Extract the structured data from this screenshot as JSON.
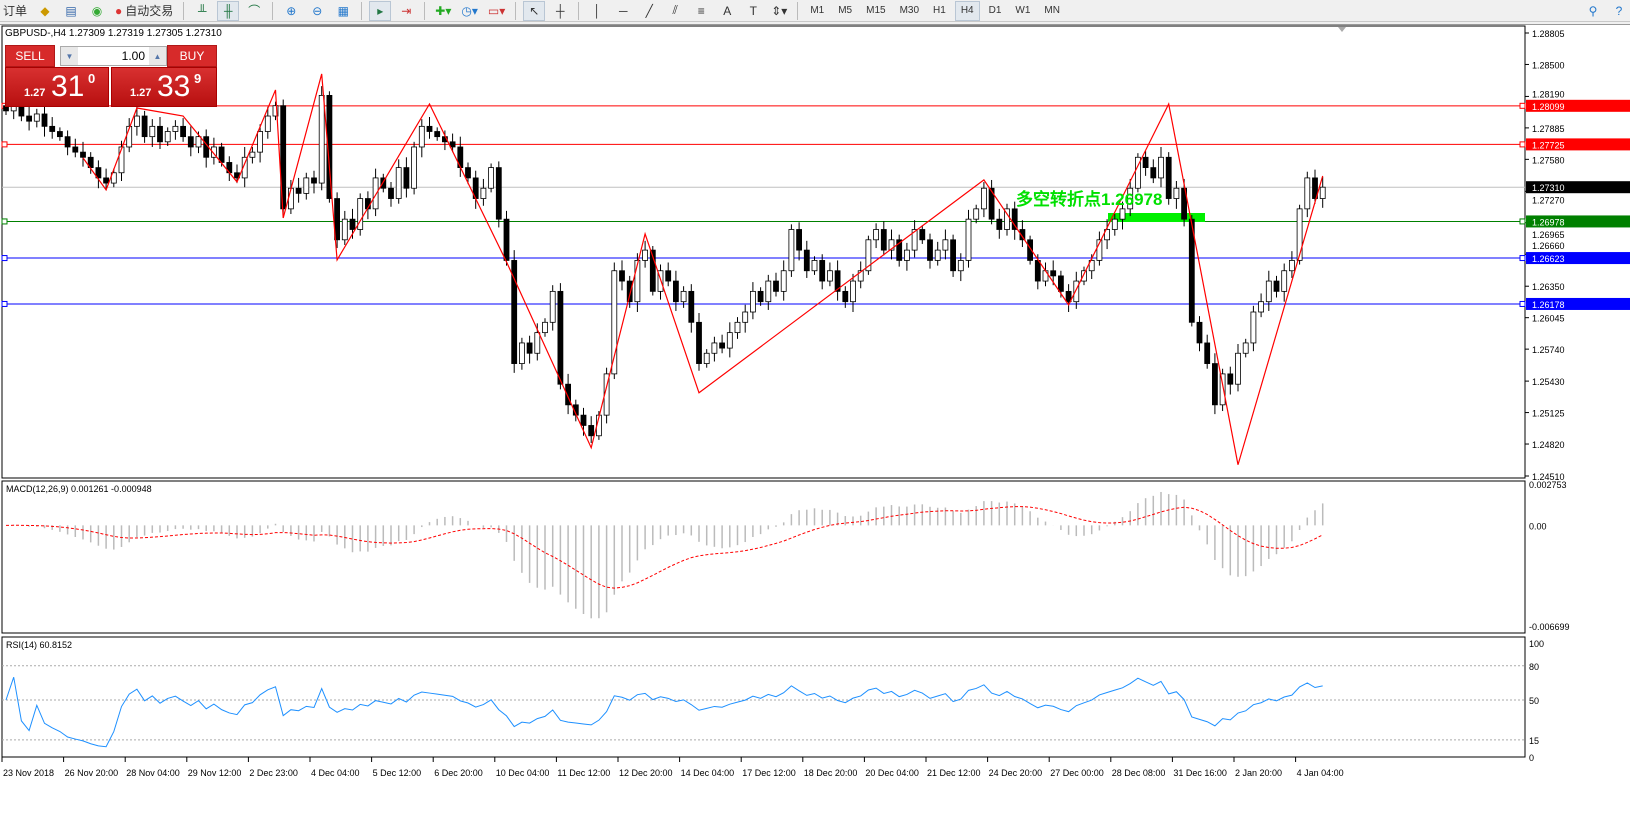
{
  "toolbar": {
    "left_item": "订单",
    "auto_trade": "自动交易",
    "timeframes": [
      "M1",
      "M5",
      "M15",
      "M30",
      "H1",
      "H4",
      "D1",
      "W1",
      "MN"
    ],
    "active_timeframe": "H4"
  },
  "chart": {
    "title": "GBPUSD-,H4  1.27309 1.27319 1.27305 1.27310",
    "symbol": "GBPUSD-",
    "period": "H4",
    "current_price": "1.27310"
  },
  "trade_panel": {
    "sell_label": "SELL",
    "buy_label": "BUY",
    "lot": "1.00",
    "sell": {
      "prefix": "1.27",
      "big": "31",
      "frac": "0"
    },
    "buy": {
      "prefix": "1.27",
      "big": "33",
      "frac": "9"
    }
  },
  "annotation": {
    "text": "多空转折点1.26978",
    "color": "#00e000"
  },
  "price_axis": {
    "ticks": [
      "1.28805",
      "1.28500",
      "1.28190",
      "1.27885",
      "1.27580",
      "1.27270",
      "1.26965",
      "1.26660",
      "1.26350",
      "1.26045",
      "1.25740",
      "1.25430",
      "1.25125",
      "1.24820",
      "1.24510"
    ],
    "range": [
      1.2451,
      1.28805
    ]
  },
  "levels": [
    {
      "price": "1.28099",
      "color": "#ff0000"
    },
    {
      "price": "1.27725",
      "color": "#ff0000"
    },
    {
      "price": "1.27310",
      "color": "#c0c0c0",
      "label_bg": "#000000"
    },
    {
      "price": "1.26978",
      "color": "#008000"
    },
    {
      "price": "1.26623",
      "color": "#0000ff"
    },
    {
      "price": "1.26178",
      "color": "#0000ff"
    }
  ],
  "closes": [
    1.2805,
    1.281,
    1.28,
    1.2795,
    1.2802,
    1.279,
    1.2785,
    1.278,
    1.277,
    1.2765,
    1.276,
    1.275,
    1.274,
    1.2735,
    1.2745,
    1.277,
    1.279,
    1.28,
    1.278,
    1.279,
    1.2775,
    1.2785,
    1.279,
    1.278,
    1.277,
    1.278,
    1.276,
    1.277,
    1.2755,
    1.2745,
    1.274,
    1.276,
    1.2765,
    1.2785,
    1.28,
    1.281,
    1.271,
    1.273,
    1.2725,
    1.274,
    1.2735,
    1.282,
    1.272,
    1.268,
    1.27,
    1.269,
    1.272,
    1.271,
    1.274,
    1.273,
    1.272,
    1.275,
    1.273,
    1.277,
    1.279,
    1.2785,
    1.278,
    1.2775,
    1.277,
    1.275,
    1.274,
    1.272,
    1.273,
    1.275,
    1.27,
    1.266,
    1.256,
    1.258,
    1.257,
    1.259,
    1.26,
    1.263,
    1.254,
    1.252,
    1.251,
    1.25,
    1.249,
    1.251,
    1.255,
    1.265,
    1.264,
    1.262,
    1.266,
    1.267,
    1.263,
    1.265,
    1.264,
    1.262,
    1.263,
    1.26,
    1.256,
    1.257,
    1.258,
    1.2575,
    1.259,
    1.26,
    1.261,
    1.263,
    1.262,
    1.264,
    1.263,
    1.265,
    1.269,
    1.267,
    1.265,
    1.266,
    1.264,
    1.265,
    1.263,
    1.262,
    1.264,
    1.265,
    1.268,
    1.269,
    1.267,
    1.268,
    1.266,
    1.267,
    1.269,
    1.268,
    1.266,
    1.267,
    1.268,
    1.265,
    1.266,
    1.27,
    1.271,
    1.273,
    1.27,
    1.269,
    1.271,
    1.269,
    1.268,
    1.266,
    1.264,
    1.265,
    1.2645,
    1.263,
    1.262,
    1.264,
    1.265,
    1.266,
    1.268,
    1.269,
    1.27,
    1.271,
    1.273,
    1.276,
    1.275,
    1.274,
    1.276,
    1.272,
    1.273,
    1.27,
    1.26,
    1.258,
    1.256,
    1.252,
    1.255,
    1.254,
    1.257,
    1.258,
    1.261,
    1.262,
    1.264,
    1.263,
    1.265,
    1.266,
    1.271,
    1.274,
    1.272,
    1.2731
  ],
  "zigzag": [
    [
      10,
      1.27594
    ],
    [
      13,
      1.27284
    ],
    [
      17,
      1.28078
    ],
    [
      23,
      1.28
    ],
    [
      30,
      1.27361
    ],
    [
      35,
      1.28253
    ],
    [
      36,
      1.27012
    ],
    [
      41,
      1.28408
    ],
    [
      43,
      1.26605
    ],
    [
      55,
      1.28117
    ],
    [
      65,
      1.26586
    ],
    [
      76,
      1.24784
    ],
    [
      83,
      1.26857
    ],
    [
      90,
      1.25317
    ],
    [
      127,
      1.27381
    ],
    [
      138,
      1.26169
    ],
    [
      151,
      1.28117
    ],
    [
      160,
      1.24619
    ],
    [
      171,
      1.27419
    ]
  ],
  "macd": {
    "label": "MACD(12,26,9) 0.001261 -0.000948",
    "axis": [
      "0.002753",
      "0.00",
      "-0.006699"
    ]
  },
  "rsi": {
    "label": "RSI(14) 60.8152",
    "axis": [
      "100",
      "80",
      "50",
      "15",
      "0"
    ]
  },
  "time_axis": [
    "23 Nov 2018",
    "26 Nov 20:00",
    "28 Nov 04:00",
    "29 Nov 12:00",
    "2 Dec 23:00",
    "4 Dec 04:00",
    "5 Dec 12:00",
    "6 Dec 20:00",
    "10 Dec 04:00",
    "11 Dec 12:00",
    "12 Dec 20:00",
    "14 Dec 04:00",
    "17 Dec 12:00",
    "18 Dec 20:00",
    "20 Dec 04:00",
    "21 Dec 12:00",
    "24 Dec 20:00",
    "27 Dec 00:00",
    "28 Dec 08:00",
    "31 Dec 16:00",
    "2 Jan 20:00",
    "4 Jan 04:00"
  ]
}
